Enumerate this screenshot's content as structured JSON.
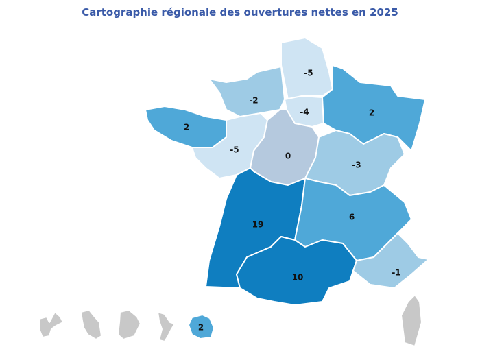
{
  "title": "Cartographie régionale des ouvertures nettes en 2025",
  "colors": {
    "darkest": "#0f7ec0",
    "medium": "#4fa8d8",
    "light": "#9ecbe5",
    "lightest": "#cfe4f3",
    "neutral": "#b5c9de",
    "no_data": "#c8c8c8"
  },
  "regions": [
    {
      "id": "hauts-de-france",
      "value": "-5",
      "color": "#cfe4f3"
    },
    {
      "id": "normandie",
      "value": "-2",
      "color": "#9ecbe5"
    },
    {
      "id": "bretagne",
      "value": "2",
      "color": "#4fa8d8"
    },
    {
      "id": "ile-de-france",
      "value": "-4",
      "color": "#cfe4f3"
    },
    {
      "id": "grand-est",
      "value": "2",
      "color": "#4fa8d8"
    },
    {
      "id": "pays-de-la-loire",
      "value": "-5",
      "color": "#cfe4f3"
    },
    {
      "id": "centre-val-de-loire",
      "value": "0",
      "color": "#b5c9de"
    },
    {
      "id": "bourgogne-franche-comte",
      "value": "-3",
      "color": "#9ecbe5"
    },
    {
      "id": "nouvelle-aquitaine",
      "value": "19",
      "color": "#0f7ec0"
    },
    {
      "id": "auvergne-rhone-alpes",
      "value": "6",
      "color": "#4fa8d8"
    },
    {
      "id": "occitanie",
      "value": "10",
      "color": "#0f7ec0"
    },
    {
      "id": "provence-alpes-cote-d-azur",
      "value": "-1",
      "color": "#9ecbe5"
    },
    {
      "id": "corse",
      "value": null,
      "color": "#c8c8c8"
    },
    {
      "id": "guadeloupe",
      "value": null,
      "color": "#c8c8c8"
    },
    {
      "id": "martinique",
      "value": null,
      "color": "#c8c8c8"
    },
    {
      "id": "guyane",
      "value": null,
      "color": "#c8c8c8"
    },
    {
      "id": "mayotte",
      "value": null,
      "color": "#c8c8c8"
    },
    {
      "id": "la-reunion",
      "value": "2",
      "color": "#4fa8d8"
    }
  ]
}
